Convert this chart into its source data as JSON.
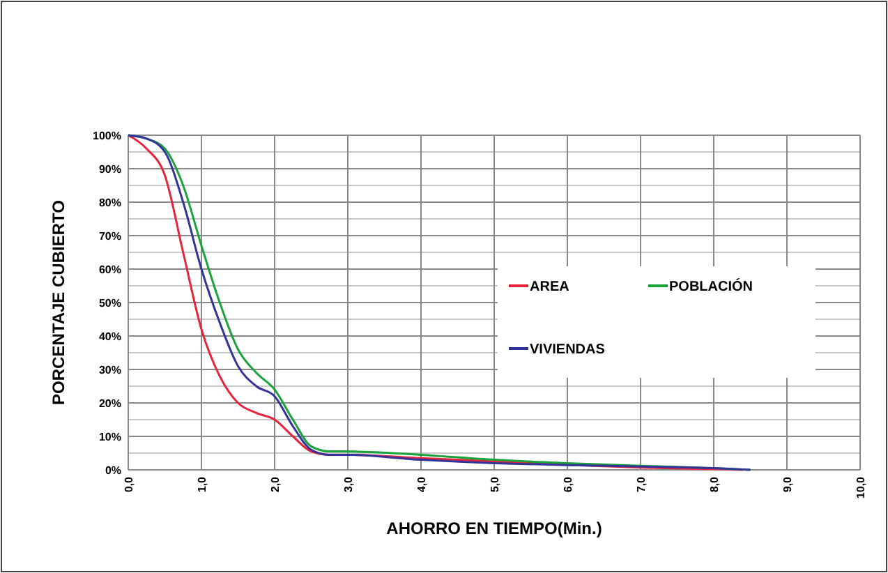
{
  "chart_data": {
    "type": "line",
    "xlabel": "AHORRO EN TIEMPO(Min.)",
    "ylabel": "PORCENTAJE CUBIERTO",
    "xlim": [
      0,
      10
    ],
    "ylim": [
      0,
      100
    ],
    "xticks": [
      {
        "value": 0,
        "label": "0,0"
      },
      {
        "value": 1,
        "label": "1,0"
      },
      {
        "value": 2,
        "label": "2,0"
      },
      {
        "value": 3,
        "label": "3,0"
      },
      {
        "value": 4,
        "label": "4,0"
      },
      {
        "value": 5,
        "label": "5,0"
      },
      {
        "value": 6,
        "label": "6,0"
      },
      {
        "value": 7,
        "label": "7,0"
      },
      {
        "value": 8,
        "label": "8,0"
      },
      {
        "value": 9,
        "label": "9,0"
      },
      {
        "value": 10,
        "label": "10,0"
      }
    ],
    "yticks": [
      {
        "value": 0,
        "label": "0%"
      },
      {
        "value": 5,
        "label": null
      },
      {
        "value": 10,
        "label": "10%"
      },
      {
        "value": 15,
        "label": null
      },
      {
        "value": 20,
        "label": "20%"
      },
      {
        "value": 25,
        "label": null
      },
      {
        "value": 30,
        "label": "30%"
      },
      {
        "value": 35,
        "label": null
      },
      {
        "value": 40,
        "label": "40%"
      },
      {
        "value": 45,
        "label": null
      },
      {
        "value": 50,
        "label": "50%"
      },
      {
        "value": 55,
        "label": null
      },
      {
        "value": 60,
        "label": "60%"
      },
      {
        "value": 65,
        "label": null
      },
      {
        "value": 70,
        "label": "70%"
      },
      {
        "value": 75,
        "label": null
      },
      {
        "value": 80,
        "label": "80%"
      },
      {
        "value": 85,
        "label": null
      },
      {
        "value": 90,
        "label": "90%"
      },
      {
        "value": 95,
        "label": null
      },
      {
        "value": 100,
        "label": "100%"
      }
    ],
    "x": [
      0,
      0.25,
      0.5,
      0.75,
      1,
      1.25,
      1.5,
      1.75,
      2,
      2.25,
      2.5,
      2.75,
      3,
      4,
      5,
      6,
      7,
      8,
      8.5
    ],
    "series": [
      {
        "name": "AREA",
        "color": "#e8233c",
        "x": [
          0,
          0.25,
          0.5,
          0.75,
          1,
          1.25,
          1.5,
          1.75,
          2,
          2.25,
          2.5,
          2.75,
          3,
          4,
          5,
          6,
          7,
          8,
          8.4
        ],
        "values": [
          100,
          96,
          88,
          65,
          42,
          28,
          20,
          17,
          15,
          10,
          5.5,
          4.5,
          4.5,
          3.5,
          2.5,
          1.5,
          0.7,
          0.2,
          0
        ]
      },
      {
        "name": "POBLACIÓN",
        "color": "#1aa33a",
        "values": [
          100,
          99,
          96,
          85,
          67,
          50,
          36,
          29,
          24,
          15,
          7,
          5.5,
          5.5,
          4.5,
          3,
          2,
          1.2,
          0.5,
          0
        ]
      },
      {
        "name": "VIVIENDAS",
        "color": "#33339a",
        "values": [
          100,
          99,
          95,
          80,
          60,
          44,
          31,
          25,
          22,
          13,
          6,
          4.5,
          4.5,
          3,
          2,
          1.4,
          1,
          0.5,
          0
        ]
      }
    ],
    "grid": true,
    "legend": "right",
    "marker": "none",
    "line_style": "solid"
  }
}
